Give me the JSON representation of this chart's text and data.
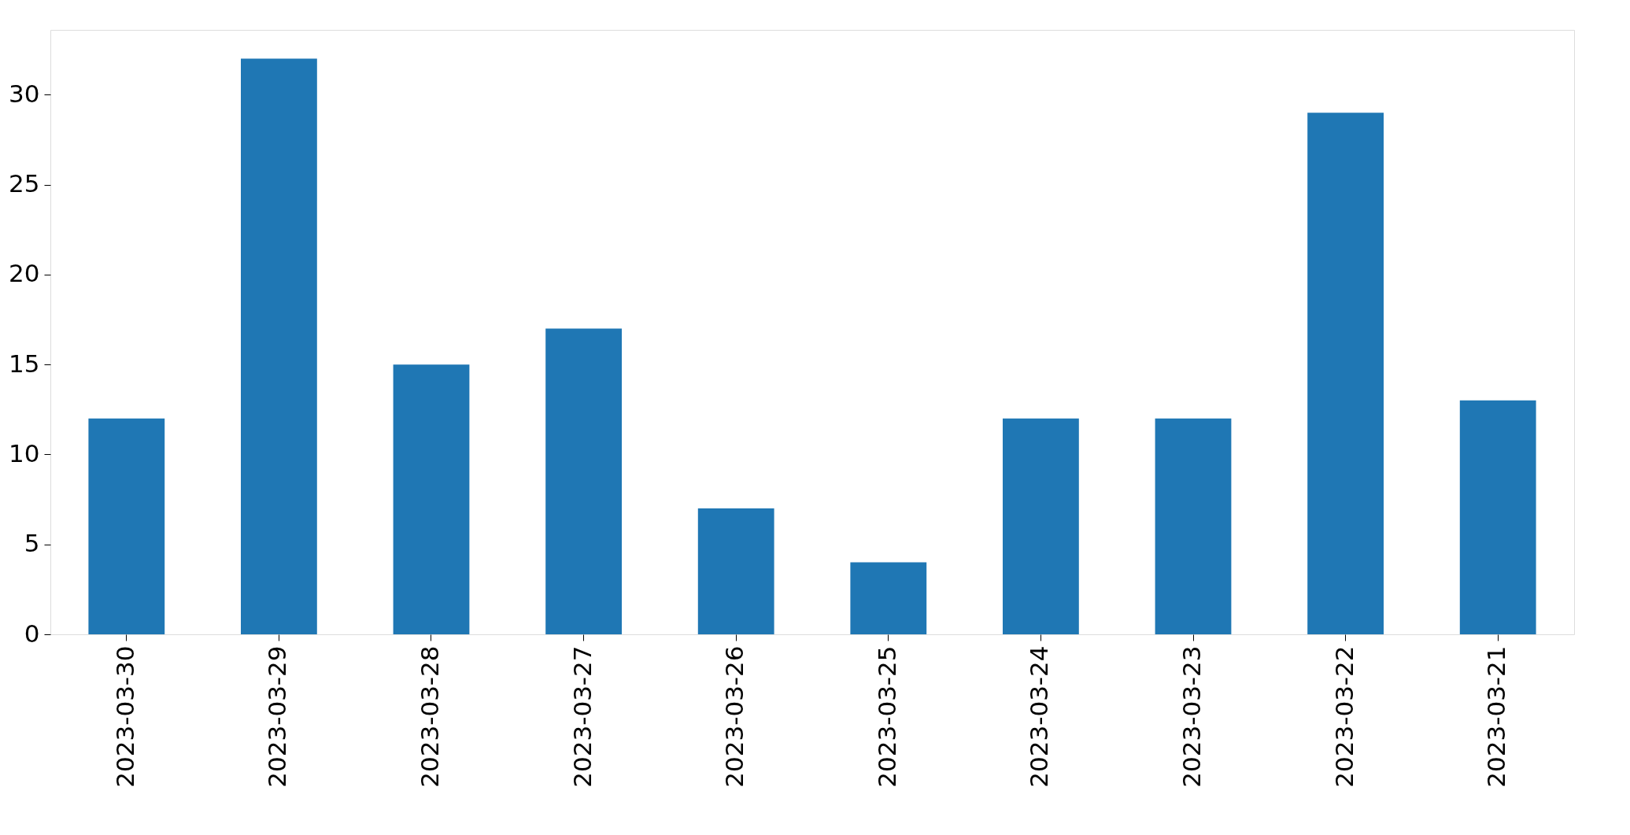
{
  "chart_data": {
    "type": "bar",
    "categories": [
      "2023-03-30",
      "2023-03-29",
      "2023-03-28",
      "2023-03-27",
      "2023-03-26",
      "2023-03-25",
      "2023-03-24",
      "2023-03-23",
      "2023-03-22",
      "2023-03-21"
    ],
    "values": [
      12,
      32,
      15,
      17,
      7,
      4,
      12,
      12,
      29,
      13
    ],
    "color": "#1f77b4",
    "ylim": [
      0,
      33.6
    ],
    "yticks": [
      0,
      5,
      10,
      15,
      20,
      25,
      30
    ],
    "grid": false
  }
}
